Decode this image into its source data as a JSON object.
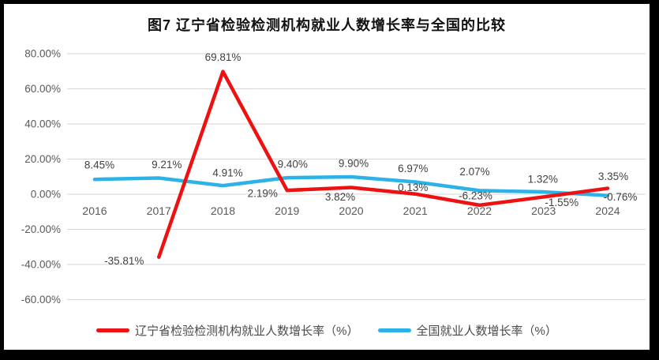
{
  "window": {
    "border_color": "#000000",
    "background_color": "#FFFFFF"
  },
  "chart_data": {
    "type": "line",
    "title": "图7 辽宁省检验检测机构就业人数增长率与全国的比较",
    "categories": [
      "2016",
      "2017",
      "2018",
      "2019",
      "2020",
      "2021",
      "2022",
      "2023",
      "2024"
    ],
    "series": [
      {
        "name": "辽宁省检验检测机构就业人数增长率（%）",
        "color": "#EE1111",
        "values": [
          null,
          -35.81,
          69.81,
          2.19,
          3.82,
          0.13,
          -6.23,
          -1.55,
          3.35
        ],
        "data_labels": [
          "",
          "-35.81%",
          "69.81%",
          "2.19%",
          "3.82%",
          "0.13%",
          "-6.23%",
          "-1.55%",
          "3.35%"
        ]
      },
      {
        "name": "全国就业人数增长率（%）",
        "color": "#2DB2E8",
        "values": [
          8.45,
          9.21,
          4.91,
          9.4,
          9.9,
          6.97,
          2.07,
          1.32,
          -0.76
        ],
        "data_labels": [
          "8.45%",
          "9.21%",
          "4.91%",
          "9.40%",
          "9.90%",
          "6.97%",
          "2.07%",
          "1.32%",
          "-0.76%"
        ]
      }
    ],
    "y_axis": {
      "min": -60,
      "max": 80,
      "step": 20,
      "tick_labels": [
        "80.00%",
        "60.00%",
        "40.00%",
        "20.00%",
        "0.00%",
        "-20.00%",
        "-40.00%",
        "-60.00%"
      ]
    },
    "grid": true,
    "legend_position": "bottom",
    "colors": {
      "gridline": "#D6D6D6",
      "axis_text": "#595959",
      "data_label_text": "#404040",
      "title_text": "#111111"
    }
  }
}
